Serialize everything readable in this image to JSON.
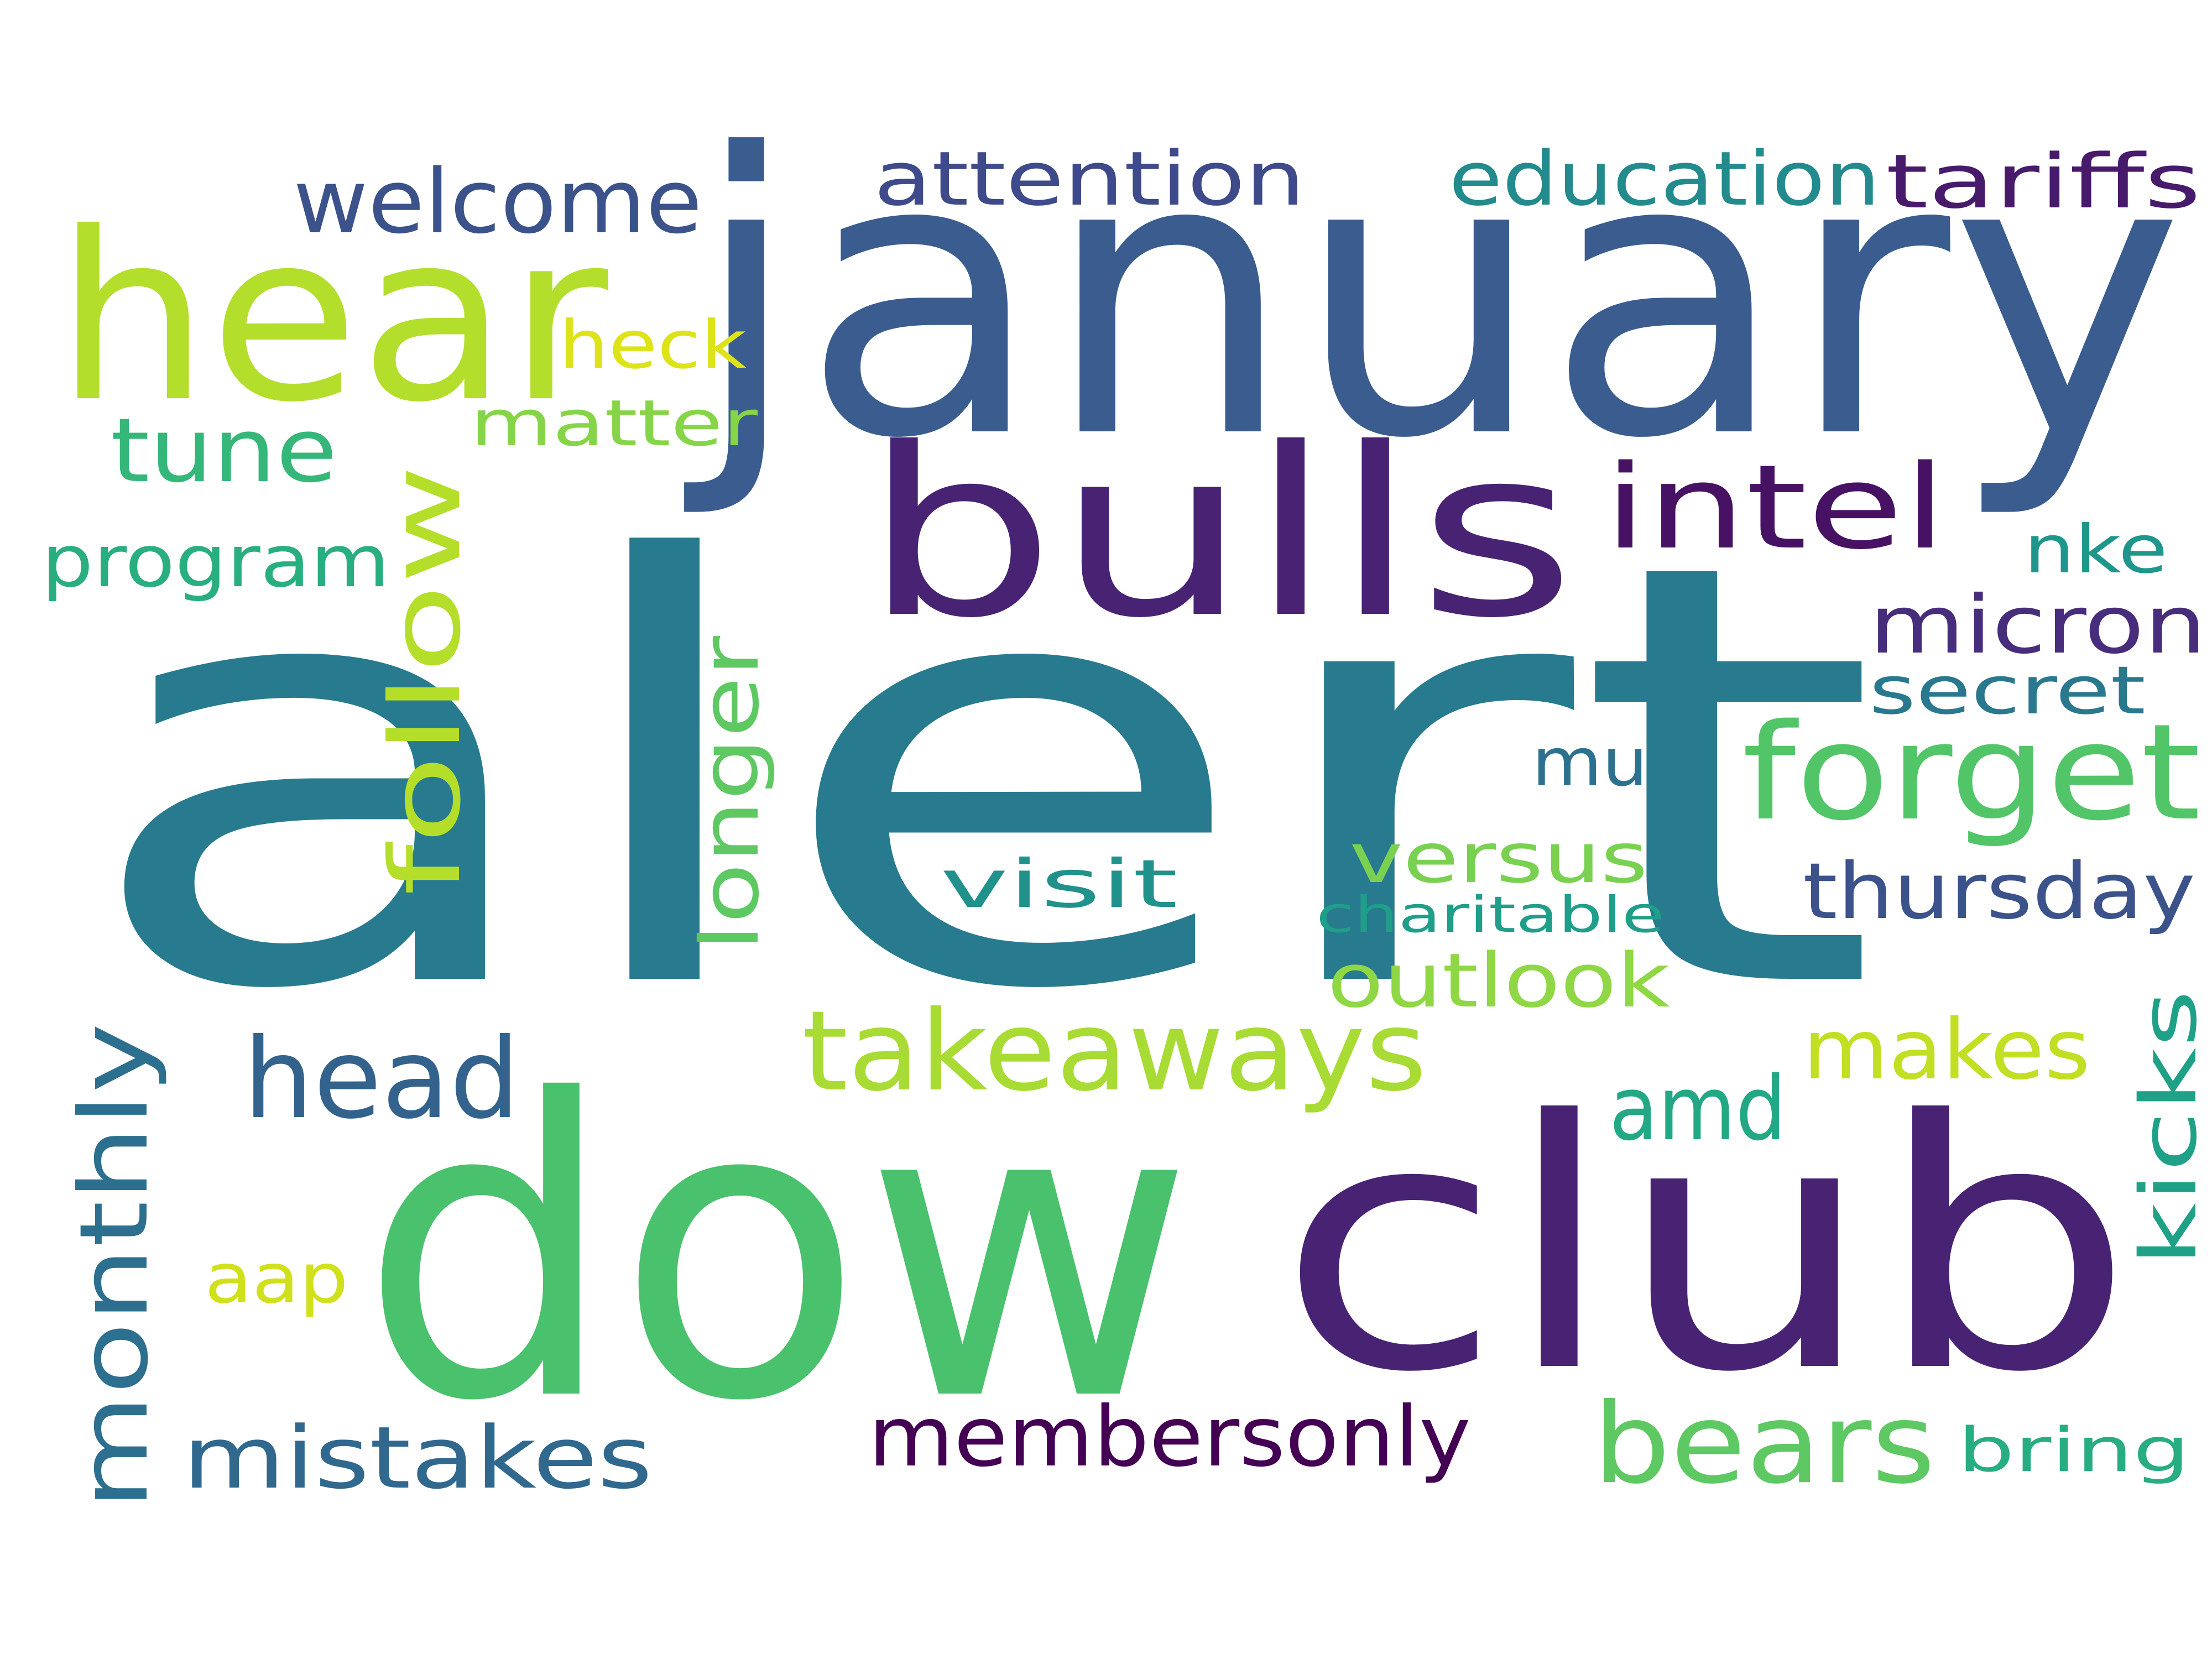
{
  "word_cloud": {
    "background": "#ffffff",
    "words": [
      {
        "text": "alert",
        "color": "#287a8e"
      },
      {
        "text": "january",
        "color": "#3a5c8e"
      },
      {
        "text": "dow",
        "color": "#4ac16d"
      },
      {
        "text": "club",
        "color": "#482374"
      },
      {
        "text": "bulls",
        "color": "#482374"
      },
      {
        "text": "hear",
        "color": "#b4de2c"
      },
      {
        "text": "forget",
        "color": "#52c569"
      },
      {
        "text": "takeaways",
        "color": "#a8db34"
      },
      {
        "text": "intel",
        "color": "#471164"
      },
      {
        "text": "head",
        "color": "#33638d"
      },
      {
        "text": "bears",
        "color": "#5ec962"
      },
      {
        "text": "welcome",
        "color": "#3b528b"
      },
      {
        "text": "follow",
        "color": "#b5de2b"
      },
      {
        "text": "monthly",
        "color": "#2d6f8e"
      },
      {
        "text": "tune",
        "color": "#35b779"
      },
      {
        "text": "micron",
        "color": "#472d7b"
      },
      {
        "text": "membersonly",
        "color": "#440154"
      },
      {
        "text": "mistakes",
        "color": "#31688e"
      },
      {
        "text": "attention",
        "color": "#3e4a89"
      },
      {
        "text": "education",
        "color": "#238a8d"
      },
      {
        "text": "tariffs",
        "color": "#481a6c"
      },
      {
        "text": "amd",
        "color": "#22a884"
      },
      {
        "text": "makes",
        "color": "#c2df23"
      },
      {
        "text": "thursday",
        "color": "#3b528b"
      },
      {
        "text": "outlook",
        "color": "#8fd744"
      },
      {
        "text": "longer",
        "color": "#5ec962"
      },
      {
        "text": "program",
        "color": "#29af7f"
      },
      {
        "text": "matter",
        "color": "#86d549"
      },
      {
        "text": "versus",
        "color": "#7ad151"
      },
      {
        "text": "heck",
        "color": "#dde318"
      },
      {
        "text": "kicks",
        "color": "#1fa187"
      },
      {
        "text": "aap",
        "color": "#d0e11c"
      },
      {
        "text": "nke",
        "color": "#1f968b"
      },
      {
        "text": "secret",
        "color": "#2a788e"
      },
      {
        "text": "visit",
        "color": "#21918c"
      },
      {
        "text": "mu",
        "color": "#2c728e"
      },
      {
        "text": "bring",
        "color": "#27ad81"
      },
      {
        "text": "charitable",
        "color": "#1f9e89"
      }
    ]
  }
}
